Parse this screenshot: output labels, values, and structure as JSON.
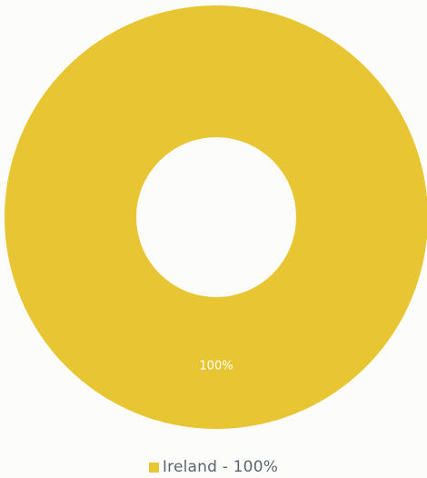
{
  "chart_data": {
    "type": "pie",
    "variant": "donut",
    "categories": [
      "Ireland"
    ],
    "values": [
      100
    ],
    "data_labels": [
      "100%"
    ],
    "colors": [
      "#e8c532"
    ],
    "legend": {
      "placement": "bottom-center",
      "entries": [
        "Ireland - 100%"
      ]
    }
  }
}
